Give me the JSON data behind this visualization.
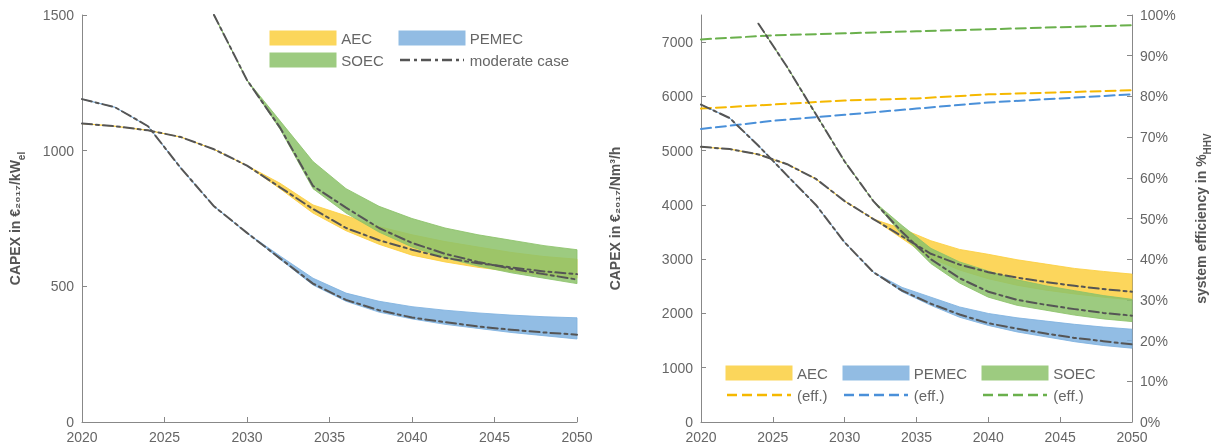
{
  "chart_data": [
    {
      "type": "line",
      "ylabel": "CAPEX in €₂₀₁₇/kW$_{el}$",
      "x": [
        2020,
        2022,
        2024,
        2026,
        2028,
        2030,
        2032,
        2034,
        2036,
        2038,
        2040,
        2042,
        2044,
        2046,
        2048,
        2050
      ],
      "xlim": [
        2020,
        2050
      ],
      "xticks": [
        2020,
        2025,
        2030,
        2035,
        2040,
        2045,
        2050
      ],
      "ylim": [
        0,
        1500
      ],
      "yticks": [
        0,
        500,
        1000,
        1500
      ],
      "grid": false,
      "legend": "top right",
      "series": [
        {
          "name": "AEC",
          "color": "#fbcf3f",
          "values": [
            null,
            null,
            null,
            null,
            null,
            null,
            null,
            null,
            null,
            null,
            null,
            null,
            null,
            null,
            null,
            null
          ],
          "lower": [
            1100,
            1090,
            1075,
            1050,
            1005,
            945,
            860,
            770,
            705,
            655,
            615,
            590,
            570,
            555,
            540,
            530
          ],
          "upper": [
            1100,
            1090,
            1075,
            1050,
            1005,
            945,
            880,
            800,
            760,
            720,
            690,
            665,
            645,
            625,
            610,
            600
          ]
        },
        {
          "name": "PEMEC",
          "color": "#7fb1df",
          "values": [
            null,
            null,
            null,
            null,
            null,
            null,
            null,
            null,
            null,
            null,
            null,
            null,
            null,
            null,
            null,
            null
          ],
          "lower": [
            1190,
            1160,
            1090,
            935,
            795,
            697,
            600,
            505,
            445,
            405,
            380,
            360,
            345,
            330,
            318,
            306
          ],
          "upper": [
            1190,
            1160,
            1090,
            935,
            795,
            697,
            612,
            530,
            475,
            445,
            425,
            412,
            402,
            394,
            388,
            384
          ]
        },
        {
          "name": "SOEC",
          "color": "#8cc26a",
          "values": [
            null,
            null,
            null,
            null,
            null,
            null,
            null,
            null,
            null,
            null,
            null,
            null,
            null,
            null,
            null,
            null
          ],
          "lower": [
            null,
            null,
            null,
            null,
            1500,
            1260,
            1080,
            860,
            770,
            700,
            645,
            605,
            575,
            550,
            530,
            510
          ],
          "upper": [
            null,
            null,
            null,
            null,
            1500,
            1260,
            1110,
            960,
            860,
            795,
            750,
            715,
            690,
            670,
            650,
            635
          ]
        },
        {
          "name": "moderate case",
          "color": "#555555",
          "line_style": "dashdot",
          "values": [
            1100,
            1090,
            1075,
            1050,
            1005,
            945,
            865,
            785,
            715,
            670,
            635,
            605,
            585,
            570,
            555,
            545
          ]
        },
        {
          "color": "#555555",
          "line_style": "dashdot",
          "values": [
            1190,
            1160,
            1090,
            935,
            795,
            697,
            603,
            510,
            450,
            412,
            385,
            368,
            352,
            340,
            330,
            322
          ]
        },
        {
          "color": "#555555",
          "line_style": "dashdot",
          "values": [
            null,
            null,
            null,
            null,
            1500,
            1260,
            1085,
            870,
            790,
            715,
            660,
            620,
            590,
            565,
            545,
            525
          ]
        }
      ]
    },
    {
      "type": "line",
      "ylabel": "CAPEX in €₂₀₁₇/Nm³/h",
      "y2label": "system efficiency in %$_{HHV}$",
      "x": [
        2020,
        2022,
        2024,
        2026,
        2028,
        2030,
        2032,
        2034,
        2036,
        2038,
        2040,
        2042,
        2044,
        2046,
        2048,
        2050
      ],
      "xlim": [
        2020,
        2050
      ],
      "xticks": [
        2020,
        2025,
        2030,
        2035,
        2040,
        2045,
        2050
      ],
      "ylim": [
        0,
        7500
      ],
      "yticks": [
        0,
        1000,
        2000,
        3000,
        4000,
        5000,
        6000,
        7000
      ],
      "y2lim": [
        0,
        100
      ],
      "y2ticks": [
        {
          "value": 0,
          "label": "0%"
        },
        {
          "value": 10,
          "label": "10%"
        },
        {
          "value": 20,
          "label": "20%"
        },
        {
          "value": 30,
          "label": "30%"
        },
        {
          "value": 40,
          "label": "40%"
        },
        {
          "value": 50,
          "label": "50%"
        },
        {
          "value": 60,
          "label": "60%"
        },
        {
          "value": 70,
          "label": "70%"
        },
        {
          "value": 80,
          "label": "80%"
        },
        {
          "value": 90,
          "label": "90%"
        },
        {
          "value": 100,
          "label": "100%"
        }
      ],
      "grid": false,
      "legend": "bottom",
      "series": [
        {
          "name": "AEC",
          "color": "#fbcf3f",
          "values": [
            null,
            null,
            null,
            null,
            null,
            null,
            null,
            null,
            null,
            null,
            null,
            null,
            null,
            null,
            null,
            null
          ],
          "lower": [
            5070,
            5030,
            4930,
            4750,
            4480,
            4070,
            3740,
            3380,
            3020,
            2800,
            2640,
            2520,
            2430,
            2360,
            2300,
            2250
          ],
          "upper": [
            5070,
            5030,
            4930,
            4750,
            4480,
            4070,
            3740,
            3560,
            3340,
            3180,
            3090,
            2990,
            2910,
            2830,
            2775,
            2725
          ]
        },
        {
          "name": "PEMEC",
          "color": "#7fb1df",
          "values": [
            null,
            null,
            null,
            null,
            null,
            null,
            null,
            null,
            null,
            null,
            null,
            null,
            null,
            null,
            null,
            null
          ],
          "lower": [
            5850,
            5600,
            5090,
            4540,
            4000,
            3310,
            2760,
            2400,
            2150,
            1930,
            1780,
            1660,
            1570,
            1480,
            1410,
            1360
          ],
          "upper": [
            5850,
            5600,
            5090,
            4540,
            4000,
            3310,
            2760,
            2480,
            2300,
            2120,
            2000,
            1920,
            1860,
            1800,
            1750,
            1710
          ]
        },
        {
          "name": "SOEC",
          "color": "#8cc26a",
          "values": [
            null,
            null,
            null,
            null,
            null,
            null,
            null,
            null,
            null,
            null,
            null,
            null,
            null,
            null,
            null,
            null
          ],
          "lower": [
            null,
            null,
            7340,
            6540,
            5670,
            4800,
            4070,
            3450,
            2920,
            2560,
            2300,
            2150,
            2060,
            1970,
            1900,
            1850
          ],
          "upper": [
            null,
            null,
            7340,
            6540,
            5670,
            4800,
            4070,
            3620,
            3200,
            2950,
            2780,
            2620,
            2510,
            2420,
            2330,
            2260
          ]
        },
        {
          "name": "(eff.)",
          "color": "#f5b800",
          "line_style": "dashed",
          "axis": "y2",
          "x": [
            2020,
            2025,
            2030,
            2035,
            2040,
            2045,
            2050
          ],
          "values": [
            77,
            78,
            79,
            79.5,
            80.5,
            81,
            81.5
          ]
        },
        {
          "name": "(eff.)",
          "color": "#4a90d9",
          "line_style": "dashed",
          "axis": "y2",
          "x": [
            2020,
            2025,
            2030,
            2035,
            2040,
            2045,
            2050
          ],
          "values": [
            72,
            74,
            75.5,
            77,
            78.5,
            79.5,
            80.5
          ]
        },
        {
          "name": "(eff.)",
          "color": "#6ab04c",
          "line_style": "dashed",
          "axis": "y2",
          "x": [
            2020,
            2025,
            2030,
            2035,
            2040,
            2045,
            2050
          ],
          "values": [
            94,
            95,
            95.5,
            96,
            96.5,
            97,
            97.5
          ]
        },
        {
          "color": "#555555",
          "line_style": "dashdot",
          "values": [
            5070,
            5030,
            4930,
            4750,
            4480,
            4070,
            3740,
            3420,
            3100,
            2900,
            2760,
            2660,
            2580,
            2510,
            2450,
            2400
          ]
        },
        {
          "color": "#555555",
          "line_style": "dashdot",
          "values": [
            5850,
            5600,
            5090,
            4540,
            4000,
            3310,
            2760,
            2420,
            2180,
            1980,
            1820,
            1720,
            1630,
            1550,
            1490,
            1430
          ]
        },
        {
          "color": "#555555",
          "line_style": "dashdot",
          "values": [
            null,
            null,
            7340,
            6540,
            5670,
            4800,
            4070,
            3500,
            3000,
            2650,
            2400,
            2250,
            2160,
            2080,
            2010,
            1960
          ]
        }
      ]
    }
  ]
}
